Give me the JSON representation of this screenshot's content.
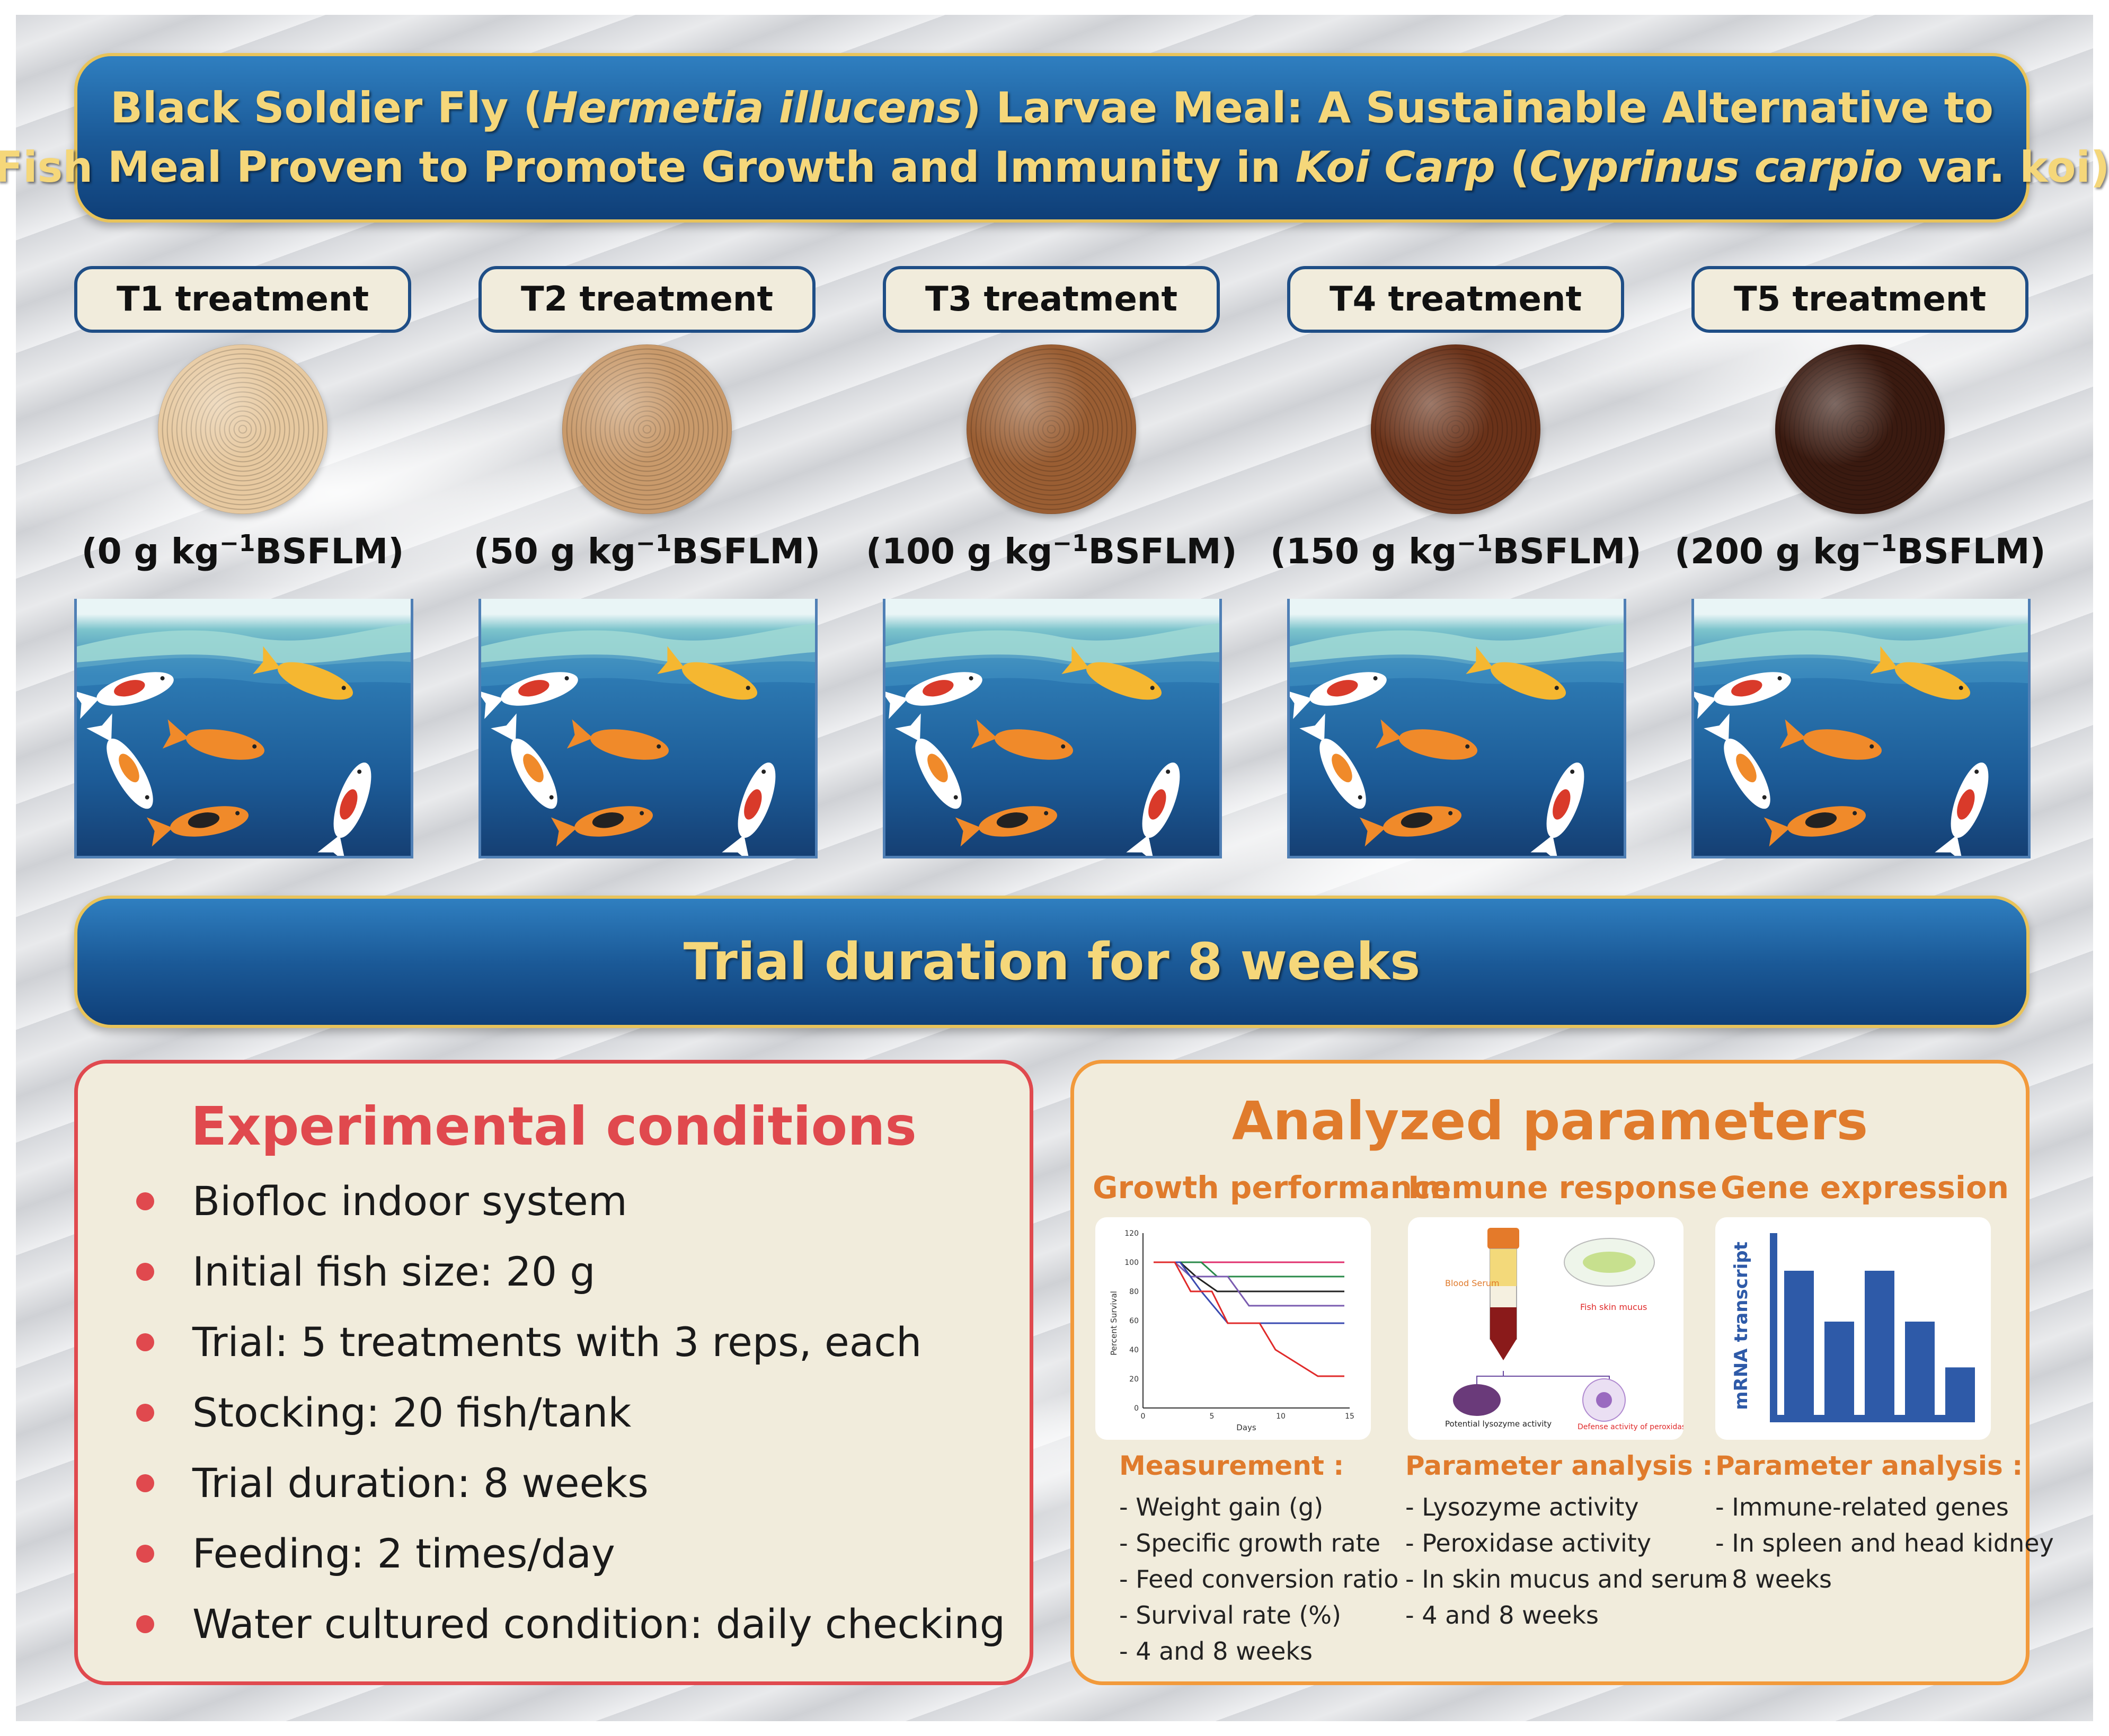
{
  "title": {
    "line1_a": "Black Soldier Fly (",
    "line1_b": "Hermetia illucens",
    "line1_c": ") Larvae Meal: A Sustainable Alternative to",
    "line2_a": "Fish Meal Proven to Promote Growth and Immunity in ",
    "line2_b": "Koi Carp",
    "line2_c": " (",
    "line2_d": "Cyprinus carpio",
    "line2_e": " var. koi)"
  },
  "treatments": [
    {
      "label": "T1 treatment",
      "dose": "(0 g kg",
      "unit": "BSFLM)",
      "color": "#e7c9a0"
    },
    {
      "label": "T2 treatment",
      "dose": "(50 g kg",
      "unit": "BSFLM)",
      "color": "#c99a6b"
    },
    {
      "label": "T3 treatment",
      "dose": "(100 g kg",
      "unit": "BSFLM)",
      "color": "#9a5e33"
    },
    {
      "label": "T4 treatment",
      "dose": "(150 g kg",
      "unit": "BSFLM)",
      "color": "#6a3219"
    },
    {
      "label": "T5 treatment",
      "dose": "(200 g kg",
      "unit": "BSFLM)",
      "color": "#3a1a10"
    }
  ],
  "exponent": "−1",
  "duration_banner": "Trial duration for 8 weeks",
  "conditions": {
    "title": "Experimental conditions",
    "items": [
      "Biofloc indoor system",
      "Initial fish size: 20 g",
      "Trial: 5 treatments with 3 reps, each",
      "Stocking: 20 fish/tank",
      "Trial duration: 8 weeks",
      "Feeding: 2 times/day",
      "Water cultured condition: daily checking"
    ]
  },
  "analyzed": {
    "title": "Analyzed parameters",
    "growth": {
      "heading": "Growth performance",
      "sub": "Measurement :",
      "items": [
        "- Weight gain (g)",
        "- Specific growth rate",
        "- Feed conversion ratio",
        "- Survival rate (%)",
        "- 4 and 8 weeks"
      ],
      "chart": {
        "ylabel": "Percent Survival",
        "xlabel": "Days",
        "yticks": [
          "120",
          "100",
          "80",
          "60",
          "40",
          "20",
          "0"
        ],
        "xticks": [
          "0",
          "5",
          "10",
          "15"
        ]
      }
    },
    "immune": {
      "heading": "Immune response",
      "sub": "Parameter analysis :",
      "items": [
        "- Lysozyme activity",
        "- Peroxidase activity",
        "- In skin mucus and serum",
        "- 4 and 8 weeks"
      ],
      "labels": {
        "blood": "Blood Serum",
        "mucus": "Fish skin mucus",
        "lysozyme": "Potential lysozyme activity",
        "peroxidase": "Defense activity of peroxidase"
      }
    },
    "gene": {
      "heading": "Gene expression",
      "sub": "Parameter analysis :",
      "items": [
        "- Immune-related genes",
        "- In spleen and head kidney",
        "- 8 weeks"
      ],
      "ylabel": "mRNA transcript",
      "bars": [
        0.85,
        0.55,
        0.85,
        0.55,
        0.28
      ]
    }
  }
}
